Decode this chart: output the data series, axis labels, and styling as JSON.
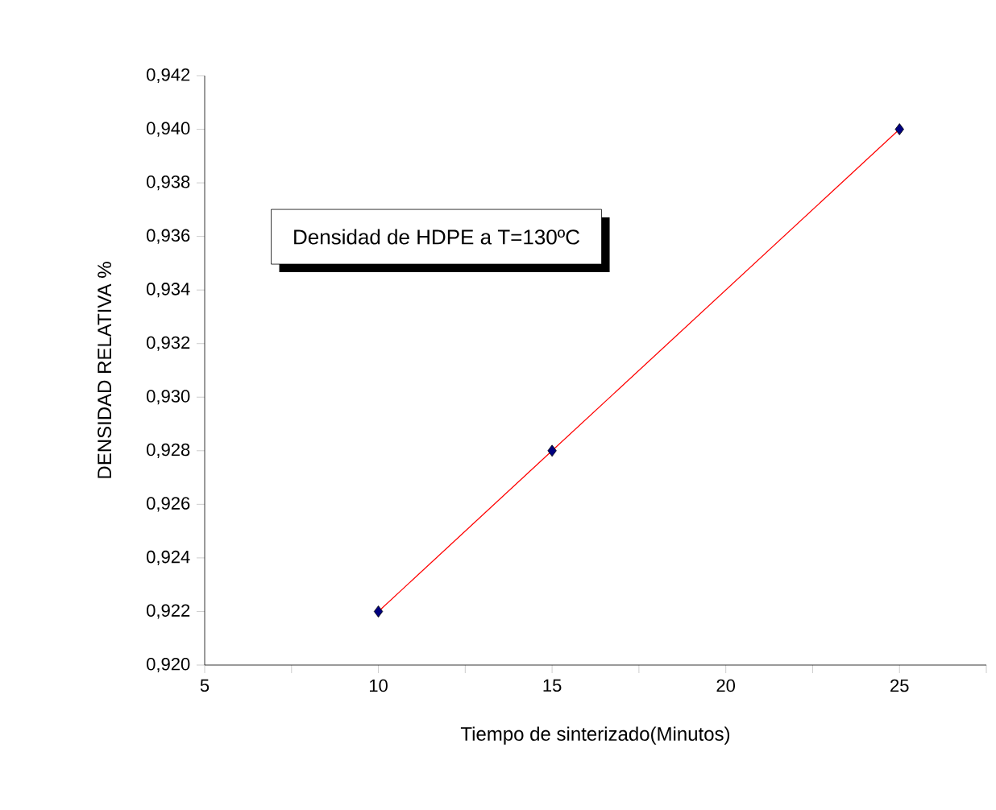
{
  "chart_data": {
    "type": "scatter",
    "xlabel": "Tiempo de sinterizado(Minutos)",
    "ylabel": "DENSIDAD RELATIVA %",
    "annotations": [
      "Densidad de HDPE a T=130ºC"
    ],
    "series": [
      {
        "type": "line",
        "color": "#ff0000",
        "x": [
          10,
          15,
          25
        ],
        "values": [
          0.922,
          0.928,
          0.94
        ],
        "marker": "none",
        "line_style": "solid"
      },
      {
        "color": "#000080",
        "x": [
          10,
          15,
          25
        ],
        "values": [
          0.922,
          0.928,
          0.94
        ],
        "marker": "diamond"
      }
    ],
    "xlim": [
      5,
      27.5
    ],
    "ylim": [
      0.92,
      0.942
    ],
    "xticks": [
      5,
      {
        "value": 7.5,
        "label": null
      },
      10,
      {
        "value": 12.5,
        "label": null
      },
      15,
      {
        "value": 17.5,
        "label": null
      },
      20,
      {
        "value": 22.5,
        "label": null
      },
      25,
      {
        "value": 27.5,
        "label": null
      }
    ],
    "yticks": [
      {
        "value": 0.92,
        "label": "0,920"
      },
      {
        "value": 0.922,
        "label": "0,922"
      },
      {
        "value": 0.924,
        "label": "0,924"
      },
      {
        "value": 0.926,
        "label": "0,926"
      },
      {
        "value": 0.928,
        "label": "0,928"
      },
      {
        "value": 0.93,
        "label": "0,930"
      },
      {
        "value": 0.932,
        "label": "0,932"
      },
      {
        "value": 0.934,
        "label": "0,934"
      },
      {
        "value": 0.936,
        "label": "0,936"
      },
      {
        "value": 0.938,
        "label": "0,938"
      },
      {
        "value": 0.94,
        "label": "0,940"
      },
      {
        "value": 0.942,
        "label": "0,942"
      }
    ],
    "grid": false
  }
}
